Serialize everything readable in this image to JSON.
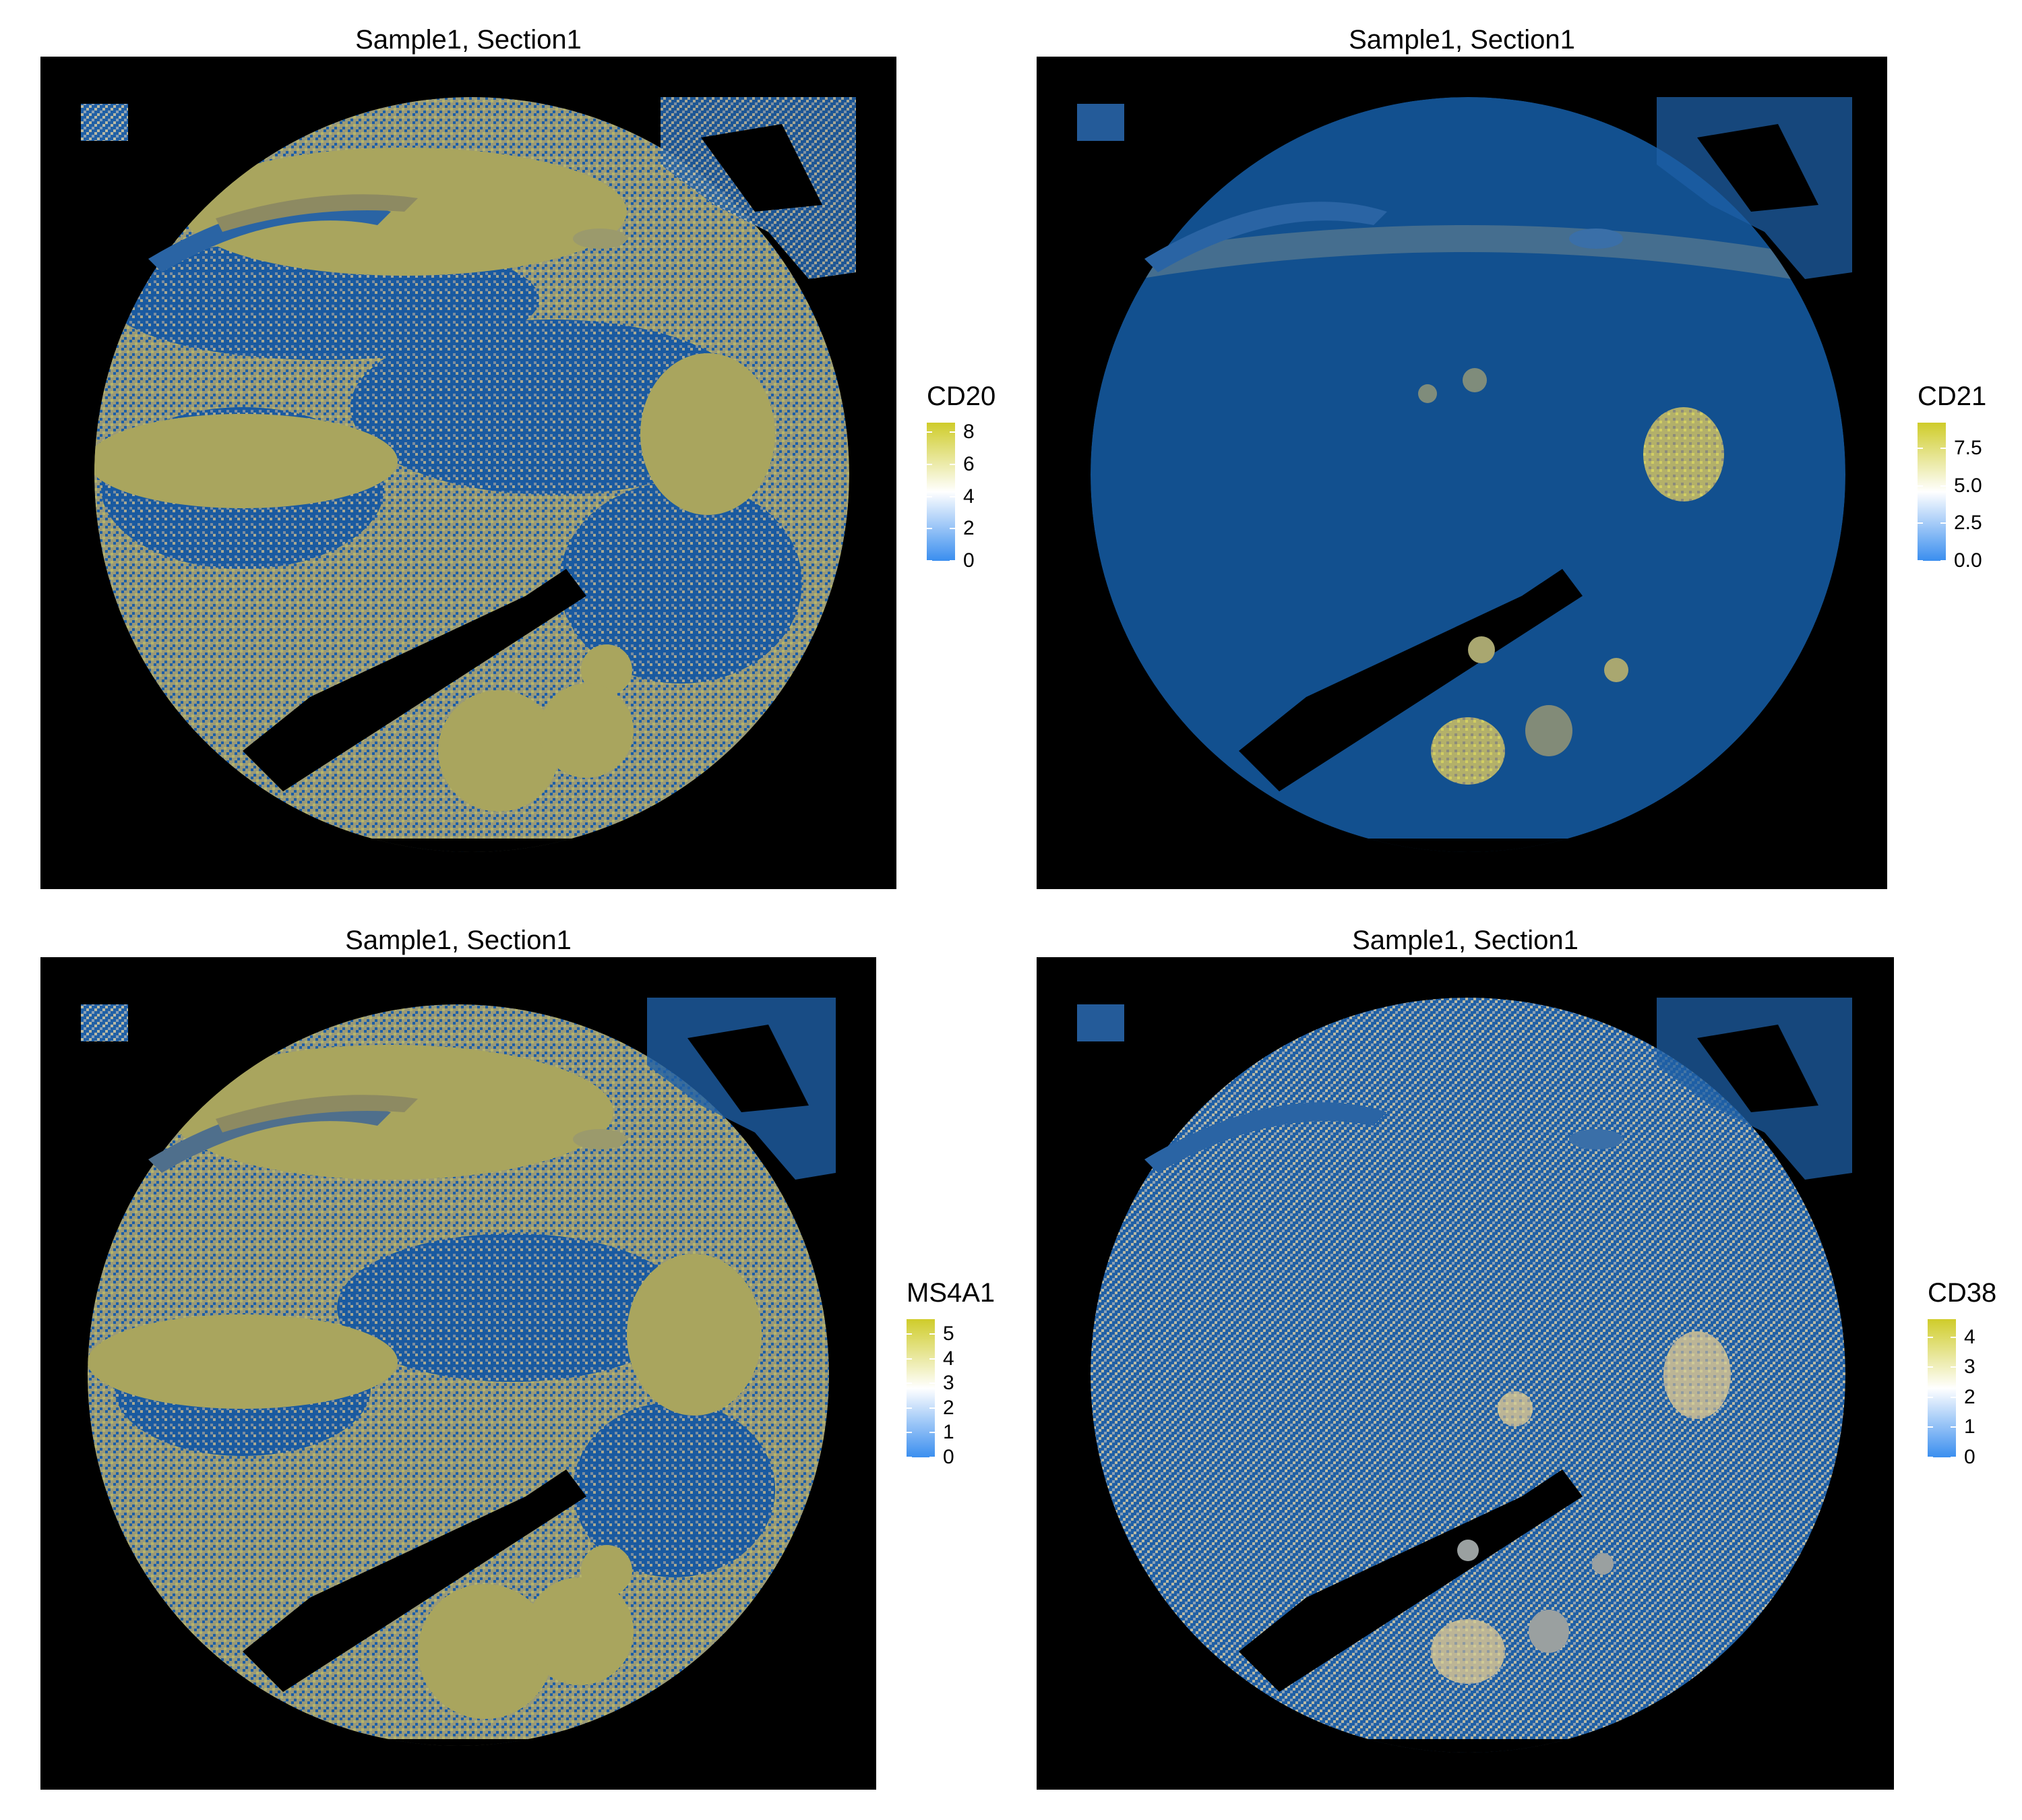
{
  "colors": {
    "low": "#3a8eef",
    "mid": "#ffffff",
    "high": "#cfcc2a",
    "background": "#000000",
    "tissue_low": "#12508f"
  },
  "chart_data": [
    {
      "type": "heatmap",
      "title": "Sample1, Section1",
      "legend": {
        "title": "CD20",
        "ticks": [
          0,
          2,
          4,
          6,
          8
        ],
        "tick_labels": [
          "0",
          "2",
          "4",
          "6",
          "8"
        ],
        "range": [
          0,
          8.6
        ],
        "placement": "right"
      }
    },
    {
      "type": "heatmap",
      "title": "Sample1, Section1",
      "legend": {
        "title": "CD21",
        "ticks": [
          0,
          2.5,
          5,
          7.5
        ],
        "tick_labels": [
          "0.0",
          "2.5",
          "5.0",
          "7.5"
        ],
        "range": [
          0,
          9.2
        ],
        "placement": "right"
      }
    },
    {
      "type": "heatmap",
      "title": "Sample1, Section1",
      "legend": {
        "title": "MS4A1",
        "ticks": [
          0,
          1,
          2,
          3,
          4,
          5
        ],
        "tick_labels": [
          "0",
          "1",
          "2",
          "3",
          "4",
          "5"
        ],
        "range": [
          0,
          5.6
        ],
        "placement": "right"
      }
    },
    {
      "type": "heatmap",
      "title": "Sample1, Section1",
      "legend": {
        "title": "CD38",
        "ticks": [
          0,
          1,
          2,
          3,
          4
        ],
        "tick_labels": [
          "0",
          "1",
          "2",
          "3",
          "4"
        ],
        "range": [
          0,
          4.6
        ],
        "placement": "right"
      }
    }
  ]
}
